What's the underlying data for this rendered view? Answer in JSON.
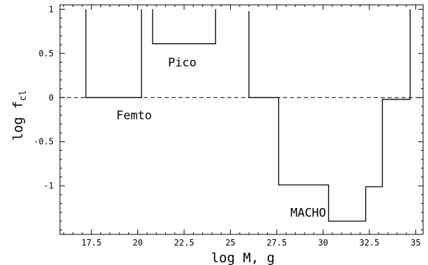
{
  "chart_data": {
    "type": "line",
    "xlabel": "log M, g",
    "ylabel_main": "log f",
    "ylabel_sub": "cl",
    "xlim": [
      15.8,
      35.4
    ],
    "ylim": [
      -1.55,
      1.05
    ],
    "x_ticks": [
      {
        "value": 17.5,
        "label": "17.5"
      },
      {
        "value": 20,
        "label": "20"
      },
      {
        "value": 22.5,
        "label": "22.5"
      },
      {
        "value": 25,
        "label": "25"
      },
      {
        "value": 27.5,
        "label": "27.5"
      },
      {
        "value": 30,
        "label": "30"
      },
      {
        "value": 32.5,
        "label": "32.5"
      },
      {
        "value": 35,
        "label": "35"
      }
    ],
    "y_ticks": [
      {
        "value": 1,
        "label": "1"
      },
      {
        "value": 0.5,
        "label": "0.5"
      },
      {
        "value": 0,
        "label": "0"
      },
      {
        "value": -0.5,
        "label": "-0.5"
      },
      {
        "value": -1,
        "label": "-1"
      }
    ],
    "reference_line_y": 0,
    "series": [
      {
        "label": "Femto",
        "label_pos": [
          19.8,
          -0.2
        ],
        "points": [
          [
            17.2,
            1.0
          ],
          [
            17.2,
            0.0
          ],
          [
            20.2,
            0.0
          ],
          [
            20.2,
            1.0
          ]
        ]
      },
      {
        "label": "Pico",
        "label_pos": [
          22.4,
          0.4
        ],
        "points": [
          [
            20.8,
            1.0
          ],
          [
            20.8,
            0.61
          ],
          [
            24.2,
            0.61
          ],
          [
            24.2,
            1.0
          ]
        ]
      },
      {
        "label": "MACHO",
        "label_pos": [
          29.2,
          -1.3
        ],
        "points": [
          [
            26.0,
            0.98
          ],
          [
            26.0,
            0.0
          ],
          [
            27.6,
            0.0
          ],
          [
            27.6,
            -0.99
          ],
          [
            30.3,
            -0.99
          ],
          [
            30.3,
            -1.4
          ],
          [
            32.3,
            -1.4
          ],
          [
            32.3,
            -1.01
          ],
          [
            33.2,
            -1.01
          ],
          [
            33.2,
            -0.02
          ],
          [
            34.7,
            -0.02
          ],
          [
            34.7,
            1.0
          ]
        ]
      }
    ]
  }
}
